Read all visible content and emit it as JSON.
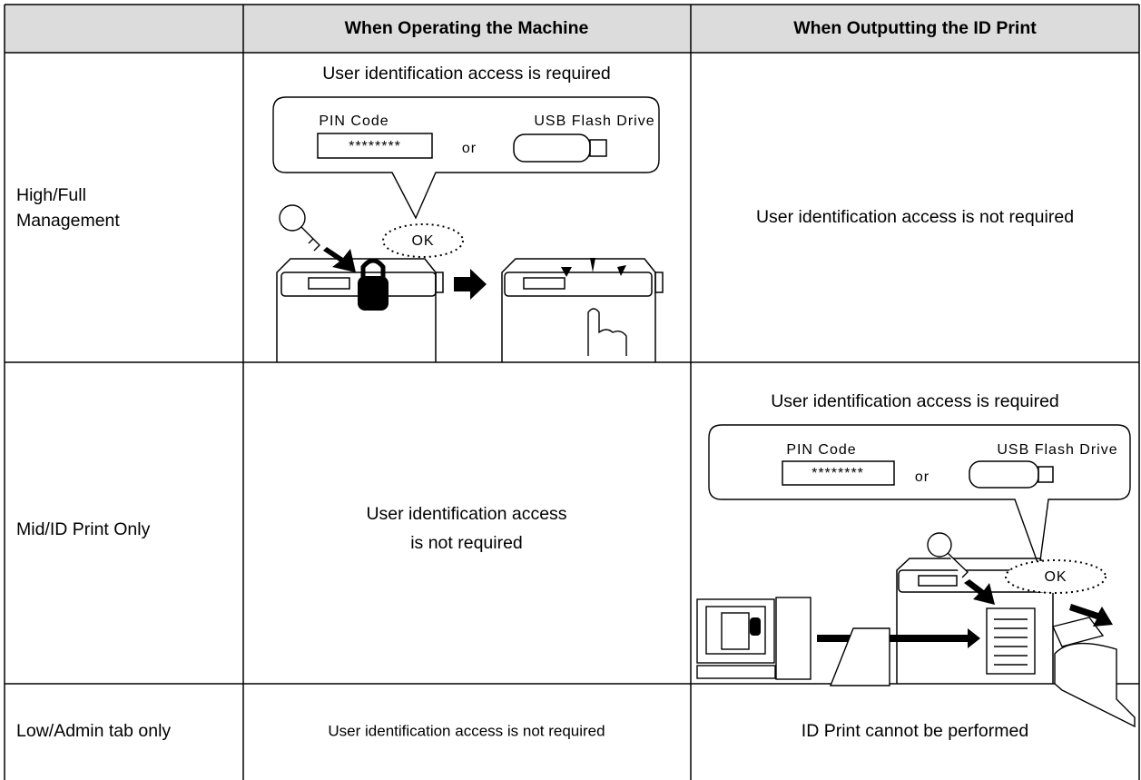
{
  "table": {
    "header": [
      "When Operating the Machine",
      "When Outputting the ID Print"
    ],
    "rows": [
      {
        "label": [
          "High/Full",
          "Management"
        ],
        "machine": {
          "caption": "User identification access is required",
          "pin_label": "PIN Code",
          "pin_value": "********",
          "or": "or",
          "usb_label": "USB Flash Drive",
          "ok": "OK"
        },
        "print": "User identification access is not required"
      },
      {
        "label": [
          "Mid/ID Print Only"
        ],
        "machine": [
          "User identification access",
          "is not required"
        ],
        "print": {
          "caption": "User identification access is required",
          "pin_label": "PIN Code",
          "pin_value": "********",
          "or": "or",
          "usb_label": "USB Flash Drive",
          "ok": "OK"
        }
      },
      {
        "label": [
          "Low/Admin tab only"
        ],
        "machine": "User identification access is not required",
        "print": "ID Print cannot be performed"
      }
    ]
  }
}
